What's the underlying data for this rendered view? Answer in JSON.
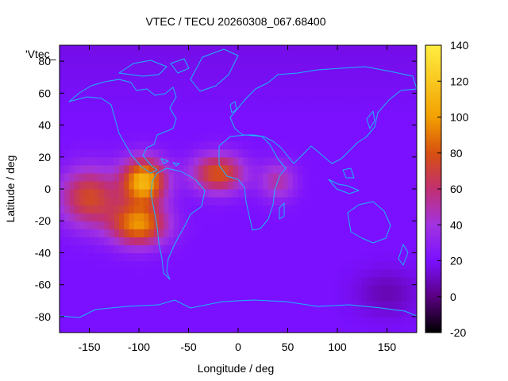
{
  "chart_data": {
    "type": "heatmap",
    "title": "VTEC / TECU 20260308_067.68400",
    "key_label": "'Vtec_",
    "xlabel": "Longitude / deg",
    "ylabel": "Latitude / deg",
    "xlim": [
      -180,
      180
    ],
    "ylim": [
      -90,
      90
    ],
    "xticks": [
      -150,
      -100,
      -50,
      0,
      50,
      100,
      150
    ],
    "yticks": [
      -80,
      -60,
      -40,
      -20,
      0,
      20,
      40,
      60,
      80
    ],
    "colorbar": {
      "range": [
        -20,
        140
      ],
      "ticks": [
        -20,
        0,
        20,
        40,
        60,
        80,
        100,
        120,
        140
      ],
      "palette": [
        "#000000",
        "#5a0080",
        "#7a10ff",
        "#a233e0",
        "#c13070",
        "#d75010",
        "#f2a000",
        "#ffee40"
      ]
    },
    "background_vtec": 20,
    "features": [
      {
        "name": "equatorial crest south america",
        "lon": -95,
        "lat": 5,
        "vtec": 110
      },
      {
        "name": "southern crest",
        "lon": -100,
        "lat": -22,
        "vtec": 95
      },
      {
        "name": "western extension",
        "lon": -150,
        "lat": -5,
        "vtec": 75
      },
      {
        "name": "atlantic tail",
        "lon": -20,
        "lat": 10,
        "vtec": 80
      },
      {
        "name": "africa tail",
        "lon": 40,
        "lat": 5,
        "vtec": 50
      },
      {
        "name": "south pacific minimum",
        "lon": 150,
        "lat": -65,
        "vtec": 8
      }
    ]
  }
}
